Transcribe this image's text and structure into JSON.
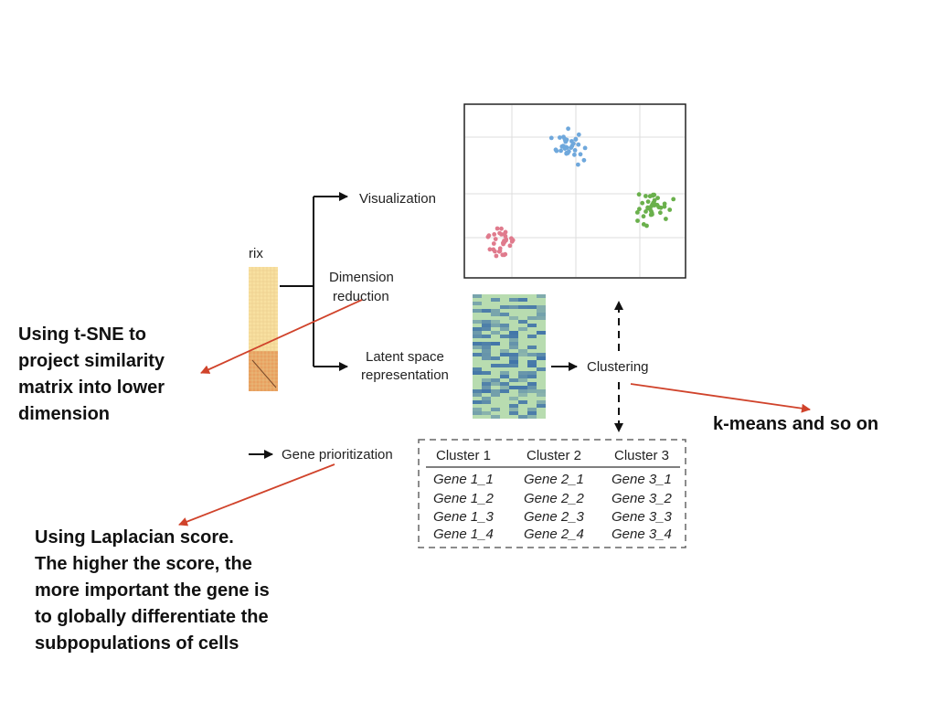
{
  "labels": {
    "matrix_partial": "rix",
    "visualization": "Visualization",
    "dimension_reduction": [
      "Dimension",
      "reduction"
    ],
    "latent_space": [
      "Latent space",
      "representation"
    ],
    "clustering": "Clustering",
    "gene_prioritization": "Gene prioritization"
  },
  "gene_table": {
    "headers": [
      "Cluster 1",
      "Cluster 2",
      "Cluster 3"
    ],
    "rows": [
      [
        "Gene 1_1",
        "Gene 2_1",
        "Gene 3_1"
      ],
      [
        "Gene 1_2",
        "Gene 2_2",
        "Gene 3_2"
      ],
      [
        "Gene 1_3",
        "Gene 2_3",
        "Gene 3_3"
      ],
      [
        "Gene 1_4",
        "Gene 2_4",
        "Gene 3_4"
      ]
    ]
  },
  "annotations": {
    "tsne": "Using t-SNE to\nproject similarity\nmatrix into lower\ndimension",
    "kmeans": "k-means and so on",
    "laplacian": "Using Laplacian score.\nThe higher the score, the\nmore important the gene is\nto globally differentiate the\nsubpopulations of cells"
  },
  "colors": {
    "cluster_blue": "#6fa8dc",
    "cluster_green": "#6ab04c",
    "cluster_pink": "#e07b8d",
    "annotation_arrow": "#d0432b",
    "matrix_light": "#f8e0a0",
    "matrix_dark": "#e8a060",
    "heatmap_green": "#b8dcb0",
    "heatmap_blue": "#3a6ea8"
  }
}
